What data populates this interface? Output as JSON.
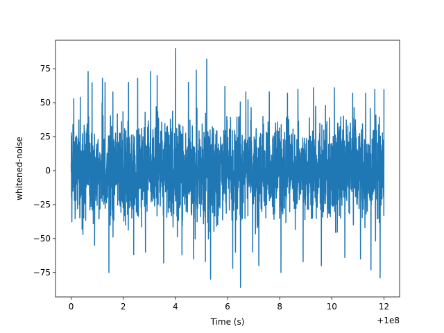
{
  "chart_data": {
    "type": "line",
    "title": "",
    "xlabel": "Time (s)",
    "ylabel": "whitened-noise",
    "x_offset_label": "+1e8",
    "xlim": [
      -0.6,
      12.6
    ],
    "ylim": [
      -93,
      96
    ],
    "xticks": [
      {
        "value": 0,
        "label": "0"
      },
      {
        "value": 2,
        "label": "2"
      },
      {
        "value": 4,
        "label": "4"
      },
      {
        "value": 6,
        "label": "6"
      },
      {
        "value": 8,
        "label": "8"
      },
      {
        "value": 10,
        "label": "10"
      },
      {
        "value": 12,
        "label": "12"
      }
    ],
    "yticks": [
      {
        "value": 75,
        "label": "75"
      },
      {
        "value": 50,
        "label": "50"
      },
      {
        "value": 25,
        "label": "25"
      },
      {
        "value": 0,
        "label": "0"
      },
      {
        "value": -25,
        "label": "−25"
      },
      {
        "value": -50,
        "label": "−50"
      },
      {
        "value": -75,
        "label": "−75"
      }
    ],
    "grid": false,
    "series": [
      {
        "color": "#1f77b4",
        "x_range": [
          0,
          12
        ],
        "envelope_amplitude": 45,
        "max_peak": {
          "x": 4.0,
          "y": 90
        },
        "min_peak": {
          "x": 6.5,
          "y": -86
        },
        "peaks": [
          {
            "x": 0.1,
            "y": 53
          },
          {
            "x": 0.35,
            "y": 54
          },
          {
            "x": 0.45,
            "y": -47
          },
          {
            "x": 0.65,
            "y": 73
          },
          {
            "x": 0.9,
            "y": -55
          },
          {
            "x": 1.2,
            "y": 68
          },
          {
            "x": 1.3,
            "y": 65
          },
          {
            "x": 1.45,
            "y": -75
          },
          {
            "x": 1.6,
            "y": 58
          },
          {
            "x": 2.2,
            "y": 65
          },
          {
            "x": 2.4,
            "y": -62
          },
          {
            "x": 2.55,
            "y": 68
          },
          {
            "x": 2.85,
            "y": -60
          },
          {
            "x": 3.05,
            "y": 73
          },
          {
            "x": 3.3,
            "y": 70
          },
          {
            "x": 3.55,
            "y": -68
          },
          {
            "x": 4.0,
            "y": 90
          },
          {
            "x": 4.25,
            "y": -62
          },
          {
            "x": 4.5,
            "y": 65
          },
          {
            "x": 4.7,
            "y": -65
          },
          {
            "x": 4.8,
            "y": 74
          },
          {
            "x": 5.15,
            "y": -67
          },
          {
            "x": 5.2,
            "y": 82
          },
          {
            "x": 5.35,
            "y": -80
          },
          {
            "x": 5.9,
            "y": 62
          },
          {
            "x": 6.2,
            "y": -72
          },
          {
            "x": 6.5,
            "y": -86
          },
          {
            "x": 6.7,
            "y": 58
          },
          {
            "x": 7.2,
            "y": -70
          },
          {
            "x": 7.6,
            "y": 58
          },
          {
            "x": 8.05,
            "y": -75
          },
          {
            "x": 8.3,
            "y": 57
          },
          {
            "x": 8.7,
            "y": 60
          },
          {
            "x": 8.9,
            "y": -67
          },
          {
            "x": 9.3,
            "y": 61
          },
          {
            "x": 9.6,
            "y": -70
          },
          {
            "x": 10.1,
            "y": 61
          },
          {
            "x": 10.5,
            "y": -64
          },
          {
            "x": 10.8,
            "y": 57
          },
          {
            "x": 11.1,
            "y": -65
          },
          {
            "x": 11.3,
            "y": 57
          },
          {
            "x": 11.5,
            "y": -73
          },
          {
            "x": 11.65,
            "y": 60
          },
          {
            "x": 11.85,
            "y": -79
          },
          {
            "x": 12.0,
            "y": 60
          }
        ]
      }
    ]
  }
}
